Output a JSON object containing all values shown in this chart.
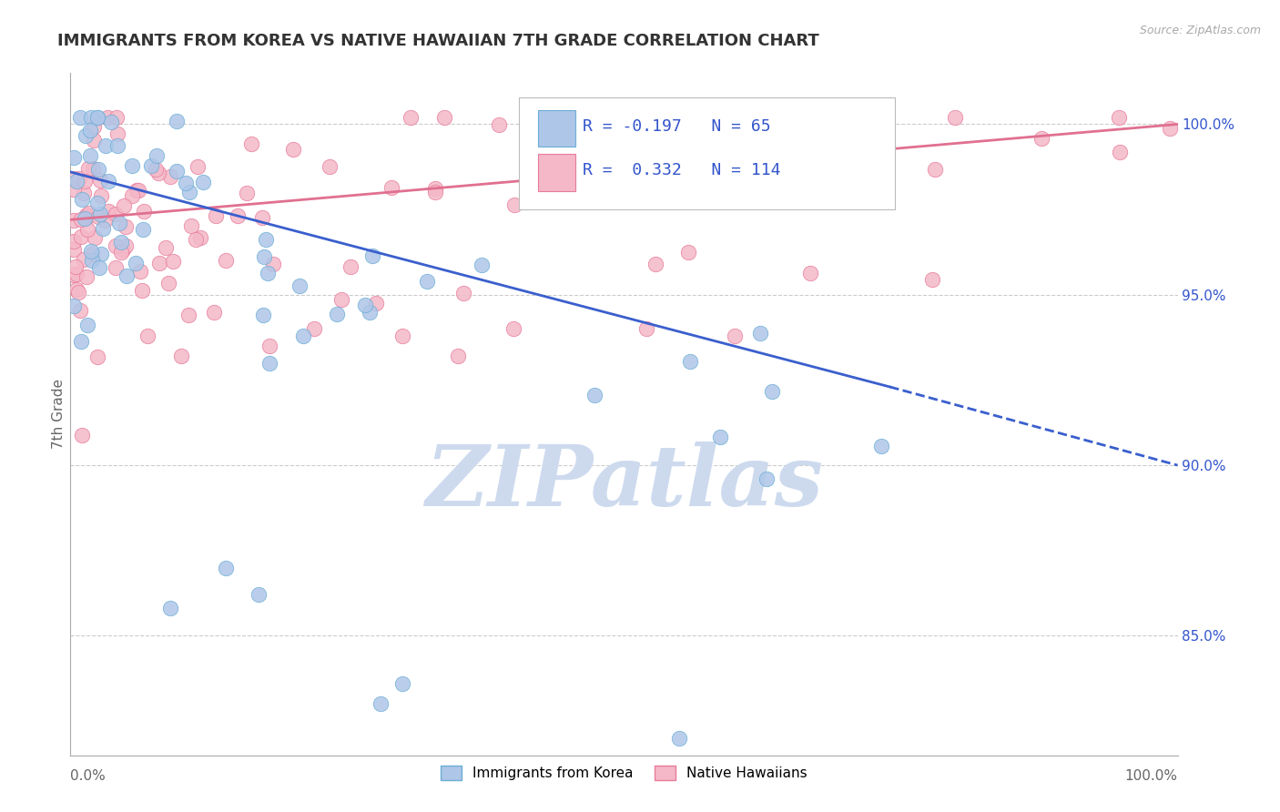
{
  "title": "IMMIGRANTS FROM KOREA VS NATIVE HAWAIIAN 7TH GRADE CORRELATION CHART",
  "source_text": "Source: ZipAtlas.com",
  "ylabel": "7th Grade",
  "y_tick_labels": [
    "85.0%",
    "90.0%",
    "95.0%",
    "100.0%"
  ],
  "y_tick_values": [
    0.85,
    0.9,
    0.95,
    1.0
  ],
  "x_min": 0.0,
  "x_max": 1.0,
  "y_min": 0.815,
  "y_max": 1.015,
  "legend_R_values": [
    "-0.197",
    "0.332"
  ],
  "legend_N_values": [
    "65",
    "114"
  ],
  "blue_line_y_start": 0.986,
  "blue_line_y_end": 0.9,
  "blue_line_solid_end_x": 0.74,
  "blue_line_solid_end_y": 0.923,
  "pink_line_y_start": 0.972,
  "pink_line_y_end": 1.0,
  "blue_scatter_color": "#aec6e8",
  "blue_edge_color": "#6baed6",
  "pink_scatter_color": "#f4b8c8",
  "pink_edge_color": "#e87b9a",
  "blue_line_color": "#3a5fcd",
  "pink_line_color": "#e07090",
  "watermark_color": "#cddaee",
  "grid_color": "#cccccc",
  "background_color": "#ffffff",
  "title_color": "#333333",
  "title_fontsize": 13,
  "axis_label_color": "#666666",
  "tick_label_color": "#3355cc"
}
